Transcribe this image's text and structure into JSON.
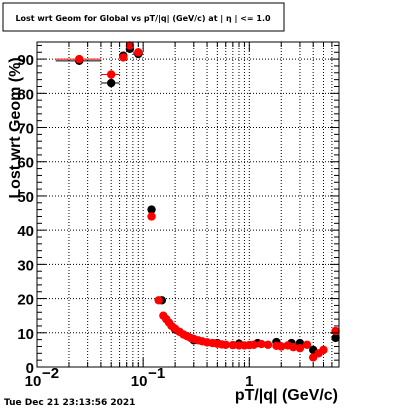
{
  "footer": {
    "timestamp": "Tue Dec 21 23:13:56 2021"
  },
  "chart_data": {
    "type": "scatter",
    "title": "Lost wrt Geom for Global vs pT/|q| (GeV/c) at | η | <= 1.0",
    "xlabel": "pT/|q| (GeV/c)",
    "ylabel": "Lost wrt Geom (%)",
    "xscale": "log",
    "xlim": [
      0.01,
      7
    ],
    "ylim": [
      0,
      95
    ],
    "grid": true,
    "x_ticks": [
      {
        "value": 0.01,
        "base": "10",
        "exp": "−2"
      },
      {
        "value": 0.1,
        "base": "10",
        "exp": "−1"
      },
      {
        "value": 1,
        "base": "1",
        "exp": ""
      }
    ],
    "y_ticks": [
      0,
      10,
      20,
      30,
      40,
      50,
      60,
      70,
      80,
      90
    ],
    "colors": {
      "series_black": "#000000",
      "series_red": "#ff0000",
      "frame": "#000000",
      "grid": "#000000"
    },
    "series": [
      {
        "color": "#000000",
        "points": [
          {
            "x": 0.025,
            "y": 89.5,
            "xerr": [
              0.015,
              0.04
            ]
          },
          {
            "x": 0.05,
            "y": 83,
            "xerr": [
              0.04,
              0.06
            ]
          },
          {
            "x": 0.065,
            "y": 91,
            "xerr": [
              0.06,
              0.07
            ]
          },
          {
            "x": 0.075,
            "y": 93,
            "xerr": [
              0.07,
              0.08
            ]
          },
          {
            "x": 0.09,
            "y": 91.5,
            "xerr": [
              0.08,
              0.1
            ]
          },
          {
            "x": 0.12,
            "y": 46
          },
          {
            "x": 0.15,
            "y": 19.5
          },
          {
            "x": 0.2,
            "y": 11
          },
          {
            "x": 0.3,
            "y": 7.8
          },
          {
            "x": 0.5,
            "y": 7
          },
          {
            "x": 0.8,
            "y": 6.8
          },
          {
            "x": 1.2,
            "y": 7
          },
          {
            "x": 1.8,
            "y": 7.3
          },
          {
            "x": 2.5,
            "y": 7
          },
          {
            "x": 3.0,
            "y": 7
          },
          {
            "x": 4.0,
            "y": 5
          },
          {
            "x": 6.5,
            "y": 8.5
          }
        ]
      },
      {
        "color": "#ff0000",
        "points": [
          {
            "x": 0.025,
            "y": 90,
            "xerr": [
              0.015,
              0.04
            ]
          },
          {
            "x": 0.05,
            "y": 85.5,
            "xerr": [
              0.04,
              0.06
            ]
          },
          {
            "x": 0.065,
            "y": 90.5,
            "xerr": [
              0.06,
              0.07
            ]
          },
          {
            "x": 0.075,
            "y": 94,
            "xerr": [
              0.07,
              0.08
            ]
          },
          {
            "x": 0.09,
            "y": 92,
            "xerr": [
              0.08,
              0.1
            ]
          },
          {
            "x": 0.12,
            "y": 44
          },
          {
            "x": 0.14,
            "y": 19.5
          },
          {
            "x": 0.155,
            "y": 15
          },
          {
            "x": 0.165,
            "y": 14
          },
          {
            "x": 0.175,
            "y": 13
          },
          {
            "x": 0.185,
            "y": 12
          },
          {
            "x": 0.2,
            "y": 11.2
          },
          {
            "x": 0.22,
            "y": 10.3
          },
          {
            "x": 0.24,
            "y": 9.5
          },
          {
            "x": 0.26,
            "y": 9
          },
          {
            "x": 0.28,
            "y": 8.5
          },
          {
            "x": 0.3,
            "y": 8.2
          },
          {
            "x": 0.33,
            "y": 7.8
          },
          {
            "x": 0.36,
            "y": 7.5
          },
          {
            "x": 0.4,
            "y": 7.2
          },
          {
            "x": 0.45,
            "y": 7
          },
          {
            "x": 0.5,
            "y": 6.8
          },
          {
            "x": 0.55,
            "y": 6.6
          },
          {
            "x": 0.6,
            "y": 6.5
          },
          {
            "x": 0.7,
            "y": 6.4
          },
          {
            "x": 0.8,
            "y": 6.3
          },
          {
            "x": 0.9,
            "y": 6.3
          },
          {
            "x": 1.0,
            "y": 6.4
          },
          {
            "x": 1.1,
            "y": 6.5
          },
          {
            "x": 1.3,
            "y": 6.7
          },
          {
            "x": 1.5,
            "y": 6.5
          },
          {
            "x": 1.8,
            "y": 6.2
          },
          {
            "x": 2.0,
            "y": 6
          },
          {
            "x": 2.3,
            "y": 6.3
          },
          {
            "x": 2.6,
            "y": 5.8
          },
          {
            "x": 3.0,
            "y": 5.5
          },
          {
            "x": 3.5,
            "y": 6.5
          },
          {
            "x": 4.0,
            "y": 2.8
          },
          {
            "x": 4.5,
            "y": 4
          },
          {
            "x": 5.0,
            "y": 5
          },
          {
            "x": 6.5,
            "y": 10.5
          }
        ]
      }
    ]
  }
}
